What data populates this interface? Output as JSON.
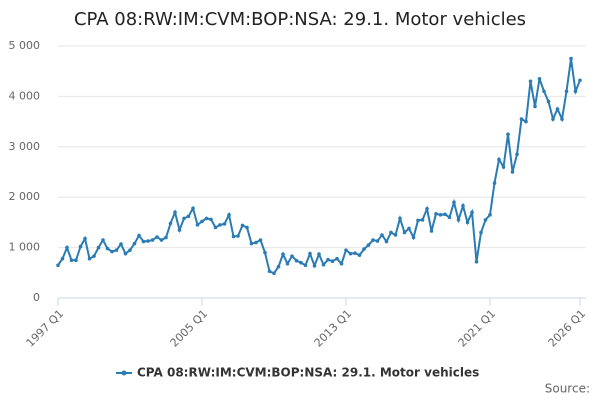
{
  "chart_data": {
    "type": "line",
    "title": "CPA 08:RW:IM:CVM:BOP:NSA: 29.1. Motor vehicles",
    "source": "Source:",
    "categories": [
      "1997 Q1",
      null,
      null,
      null,
      null,
      null,
      null,
      null,
      null,
      null,
      null,
      null,
      null,
      null,
      null,
      null,
      null,
      null,
      null,
      null,
      null,
      null,
      null,
      null,
      null,
      null,
      null,
      null,
      null,
      null,
      null,
      null,
      "2005 Q1",
      null,
      null,
      null,
      null,
      null,
      null,
      null,
      null,
      null,
      null,
      null,
      null,
      null,
      null,
      null,
      null,
      null,
      null,
      null,
      null,
      null,
      null,
      null,
      null,
      null,
      null,
      null,
      null,
      null,
      null,
      null,
      "2013 Q1",
      null,
      null,
      null,
      null,
      null,
      null,
      null,
      null,
      null,
      null,
      null,
      null,
      null,
      null,
      null,
      null,
      null,
      null,
      null,
      null,
      null,
      null,
      null,
      null,
      null,
      null,
      null,
      null,
      null,
      null,
      null,
      "2021 Q1",
      null,
      null,
      null,
      null,
      null,
      null,
      null,
      null,
      null,
      null,
      null,
      null,
      null,
      null,
      null,
      null,
      null,
      null,
      null,
      "2026 Q1"
    ],
    "series": [
      {
        "name": "CPA 08:RW:IM:CVM:BOP:NSA: 29.1. Motor vehicles",
        "color": "#2b7bb4",
        "values": [
          650,
          780,
          1000,
          750,
          750,
          1020,
          1180,
          780,
          830,
          1000,
          1150,
          980,
          920,
          950,
          1070,
          880,
          950,
          1080,
          1240,
          1120,
          1130,
          1150,
          1210,
          1150,
          1200,
          1480,
          1700,
          1350,
          1580,
          1620,
          1780,
          1450,
          1520,
          1580,
          1560,
          1400,
          1450,
          1470,
          1650,
          1220,
          1230,
          1440,
          1400,
          1080,
          1100,
          1150,
          900,
          530,
          490,
          620,
          870,
          680,
          830,
          740,
          700,
          650,
          880,
          640,
          870,
          660,
          760,
          730,
          780,
          680,
          950,
          880,
          890,
          850,
          970,
          1050,
          1150,
          1130,
          1250,
          1120,
          1300,
          1250,
          1580,
          1300,
          1380,
          1200,
          1540,
          1550,
          1770,
          1330,
          1670,
          1650,
          1660,
          1600,
          1900,
          1550,
          1830,
          1500,
          1700,
          720,
          1300,
          1550,
          1650,
          2280,
          2750,
          2600,
          3250,
          2500,
          2850,
          3550,
          3500,
          4300,
          3800,
          4350,
          4100,
          3900,
          3550,
          3750,
          3550,
          4100,
          4750,
          4100,
          4320
        ]
      }
    ],
    "ylim": [
      0,
      5000
    ],
    "yticks": [
      0,
      {
        "value": 1000,
        "label": "1 000"
      },
      {
        "value": 2000,
        "label": "2 000"
      },
      {
        "value": 3000,
        "label": "3 000"
      },
      {
        "value": 4000,
        "label": "4 000"
      },
      {
        "value": 5000,
        "label": "5 000"
      }
    ],
    "grid": true
  }
}
